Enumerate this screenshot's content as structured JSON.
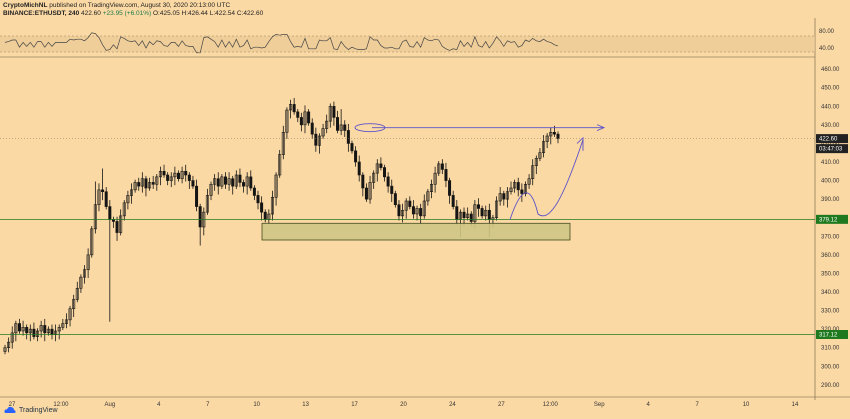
{
  "header": {
    "author": "CryptoMichNL",
    "published_prefix": "published on TradingView.com, August 30, 2020 20:13:00 UTC",
    "symbol": "BINANCE:ETHUSDT, 240",
    "last": "422.60",
    "change": "+23.95 (+6.01%)",
    "ohlc": "O:425.05 H:426.44 L:422.54 C:422.60"
  },
  "branding": {
    "logo_text": "TradingView"
  },
  "colors": {
    "background": "#fbd9a4",
    "candle": "#151515",
    "drawing": "#5b52c9",
    "support_line": "#1f7a1f",
    "price_label": "#222222",
    "box_fill": "#cfc784"
  },
  "chart_data": {
    "type": "candlestick",
    "symbol": "BINANCE:ETHUSDT",
    "interval": "240",
    "ylim": [
      284,
      466
    ],
    "y_ticks": [
      290,
      300,
      310,
      320,
      330,
      340,
      350,
      360,
      370,
      380,
      390,
      400,
      410,
      420,
      430,
      440,
      450,
      460
    ],
    "x_ticks": [
      "27",
      "12:00",
      "Aug",
      "4",
      "7",
      "10",
      "13",
      "17",
      "20",
      "24",
      "27",
      "12:00",
      "Sep",
      "4",
      "7",
      "10",
      "14"
    ],
    "price_labels": [
      {
        "label": "422.60",
        "value": 422.6
      },
      {
        "label": "03:47:03",
        "value": 417.2
      },
      {
        "label": "379.12",
        "value": 379.12
      },
      {
        "label": "317.12",
        "value": 317.12
      }
    ],
    "horizontal_lines": [
      379.12,
      317.12
    ],
    "demand_zone": {
      "low": 368,
      "high": 377
    },
    "oscillator": {
      "y_ticks": [
        "80.00",
        "40.00"
      ],
      "overbought": 80,
      "oversold": 40
    },
    "closes": [
      310,
      313,
      318,
      323,
      319,
      321,
      318,
      320,
      316,
      319,
      322,
      318,
      320,
      317,
      319,
      321,
      323,
      325,
      331,
      336,
      342,
      348,
      352,
      360,
      374,
      387,
      395,
      394,
      386,
      379,
      378,
      372,
      381,
      388,
      392,
      395,
      399,
      397,
      401,
      396,
      399,
      398,
      402,
      405,
      403,
      400,
      402,
      404,
      401,
      405,
      403,
      400,
      397,
      386,
      375,
      383,
      392,
      398,
      401,
      397,
      402,
      398,
      401,
      397,
      403,
      399,
      397,
      402,
      396,
      392,
      388,
      383,
      379,
      382,
      391,
      403,
      414,
      426,
      438,
      441,
      437,
      434,
      430,
      437,
      431,
      425,
      419,
      424,
      428,
      432,
      440,
      434,
      427,
      430,
      427,
      420,
      416,
      410,
      403,
      396,
      390,
      399,
      404,
      409,
      407,
      402,
      397,
      393,
      387,
      381,
      384,
      389,
      386,
      382,
      385,
      381,
      389,
      394,
      398,
      404,
      409,
      406,
      400,
      392,
      386,
      379,
      383,
      380,
      382,
      378,
      387,
      385,
      381,
      384,
      379,
      380,
      389,
      393,
      390,
      394,
      396,
      399,
      395,
      393,
      398,
      401,
      408,
      412,
      415,
      421,
      424,
      426,
      425,
      422.6
    ]
  }
}
